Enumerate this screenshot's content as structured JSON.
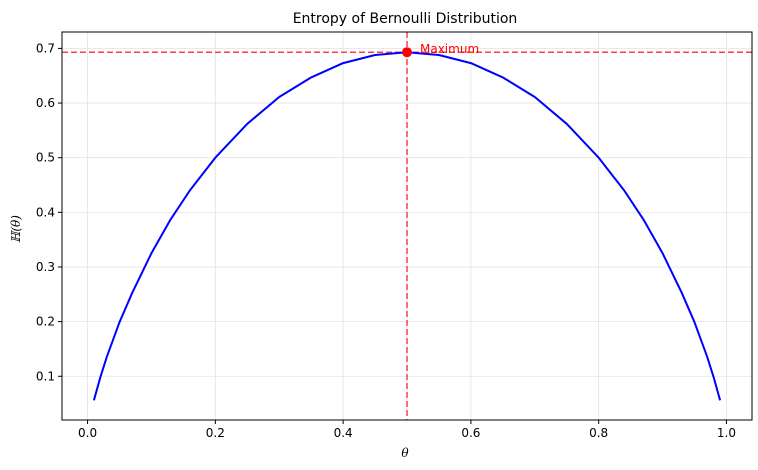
{
  "chart_data": {
    "type": "line",
    "title": "Entropy of Bernoulli Distribution",
    "xlabel": "θ",
    "ylabel": "ℍ(θ)",
    "xlim": [
      -0.04,
      1.04
    ],
    "ylim": [
      0.02,
      0.73
    ],
    "xticks": [
      0.0,
      0.2,
      0.4,
      0.6,
      0.8,
      1.0
    ],
    "xtick_labels": [
      "0.0",
      "0.2",
      "0.4",
      "0.6",
      "0.8",
      "1.0"
    ],
    "yticks": [
      0.1,
      0.2,
      0.3,
      0.4,
      0.5,
      0.6,
      0.7
    ],
    "ytick_labels": [
      "0.1",
      "0.2",
      "0.3",
      "0.4",
      "0.5",
      "0.6",
      "0.7"
    ],
    "grid": true,
    "series": [
      {
        "color": "#0000ff",
        "x": [
          0.01,
          0.02,
          0.03,
          0.05,
          0.07,
          0.1,
          0.13,
          0.16,
          0.2,
          0.25,
          0.3,
          0.35,
          0.4,
          0.45,
          0.5,
          0.55,
          0.6,
          0.65,
          0.7,
          0.75,
          0.8,
          0.84,
          0.87,
          0.9,
          0.93,
          0.95,
          0.97,
          0.98,
          0.99
        ],
        "y": [
          0.056,
          0.098,
          0.135,
          0.199,
          0.253,
          0.325,
          0.387,
          0.44,
          0.5,
          0.562,
          0.611,
          0.647,
          0.673,
          0.688,
          0.693,
          0.688,
          0.673,
          0.647,
          0.611,
          0.562,
          0.5,
          0.44,
          0.387,
          0.325,
          0.253,
          0.199,
          0.135,
          0.098,
          0.056
        ]
      }
    ],
    "maximum": {
      "x": 0.5,
      "y": 0.693,
      "label": "Maximum",
      "color": "#ff0000"
    },
    "reference_lines": {
      "vertical_x": 0.5,
      "horizontal_y": 0.693,
      "color": "#ff0000",
      "style": "dashed"
    }
  }
}
